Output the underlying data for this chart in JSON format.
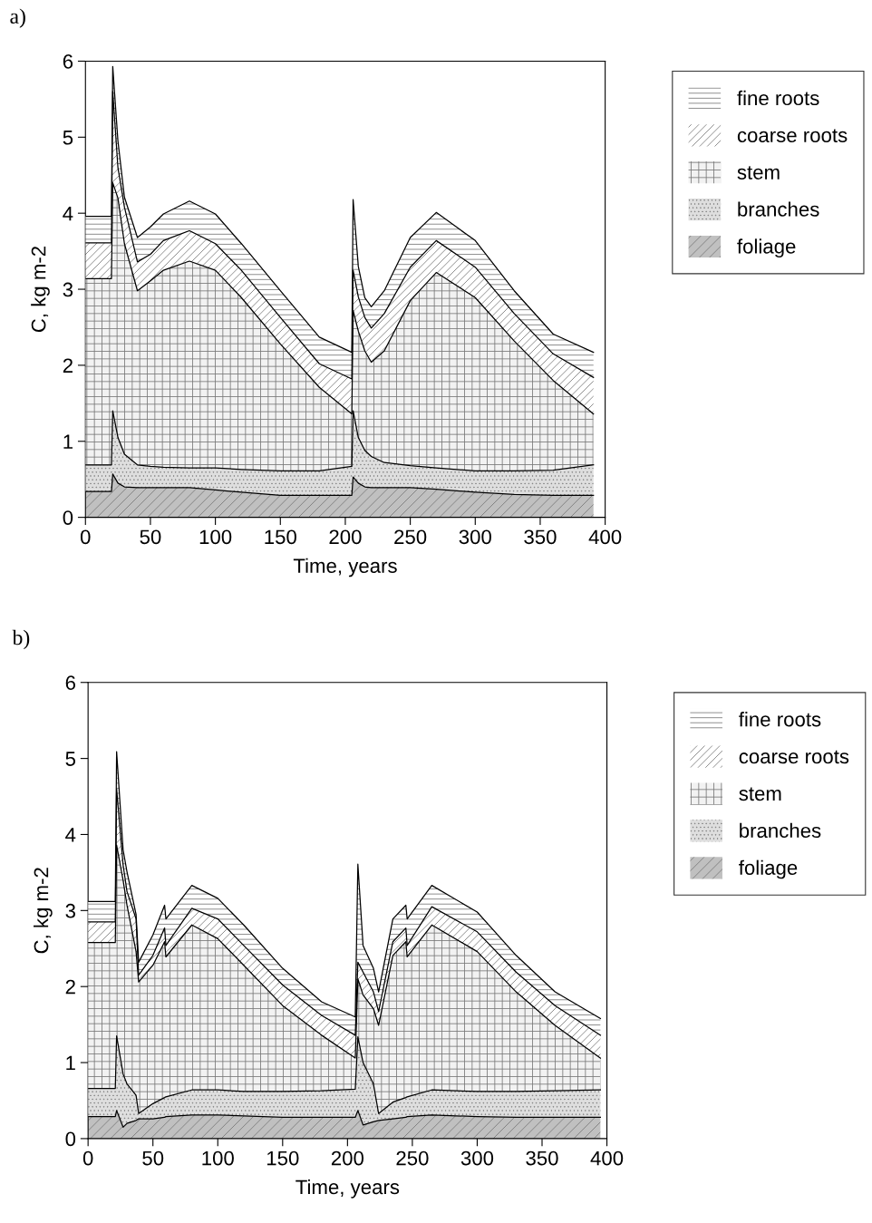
{
  "chart_data": [
    {
      "type": "area",
      "stacked": true,
      "title": "a)",
      "xlabel": "Time, years",
      "ylabel": "C, kg m-2",
      "legend": "right",
      "grid": false,
      "xlim": [
        0,
        400
      ],
      "xticks": [
        0,
        50,
        100,
        150,
        200,
        250,
        300,
        350,
        400
      ],
      "ylim": [
        0,
        6
      ],
      "yticks": [
        0,
        1,
        2,
        3,
        4,
        5,
        6
      ],
      "x": [
        0,
        20,
        21,
        25,
        30,
        40,
        50,
        60,
        80,
        100,
        120,
        150,
        180,
        205,
        206,
        210,
        215,
        220,
        230,
        250,
        270,
        300,
        330,
        360,
        391
      ],
      "series": [
        {
          "name": "foliage",
          "color": "#c0c0c0",
          "values": [
            0.34,
            0.34,
            0.57,
            0.45,
            0.4,
            0.39,
            0.39,
            0.39,
            0.39,
            0.36,
            0.33,
            0.29,
            0.29,
            0.29,
            0.53,
            0.45,
            0.4,
            0.39,
            0.39,
            0.39,
            0.37,
            0.33,
            0.3,
            0.29,
            0.29
          ]
        },
        {
          "name": "branches",
          "color": "#dedede",
          "values": [
            0.35,
            0.35,
            0.83,
            0.6,
            0.43,
            0.3,
            0.28,
            0.27,
            0.26,
            0.29,
            0.3,
            0.32,
            0.32,
            0.38,
            0.87,
            0.6,
            0.48,
            0.41,
            0.33,
            0.29,
            0.28,
            0.28,
            0.31,
            0.33,
            0.4
          ]
        },
        {
          "name": "stem",
          "color": "#f2f2f2",
          "values": [
            2.45,
            2.45,
            3.0,
            3.15,
            2.77,
            2.29,
            2.44,
            2.59,
            2.72,
            2.6,
            2.26,
            1.67,
            1.1,
            0.69,
            1.32,
            1.4,
            1.31,
            1.24,
            1.47,
            2.17,
            2.57,
            2.28,
            1.71,
            1.18,
            0.67
          ]
        },
        {
          "name": "coarse roots",
          "color": "#ffffff",
          "values": [
            0.47,
            0.47,
            1.2,
            0.4,
            0.48,
            0.38,
            0.35,
            0.39,
            0.4,
            0.35,
            0.36,
            0.35,
            0.31,
            0.46,
            0.53,
            0.45,
            0.44,
            0.45,
            0.49,
            0.44,
            0.42,
            0.4,
            0.36,
            0.35,
            0.48
          ]
        },
        {
          "name": "fine roots",
          "color": "#ffffff",
          "values": [
            0.35,
            0.35,
            0.33,
            0.35,
            0.13,
            0.32,
            0.36,
            0.35,
            0.39,
            0.39,
            0.35,
            0.35,
            0.35,
            0.35,
            0.93,
            0.4,
            0.26,
            0.28,
            0.3,
            0.39,
            0.37,
            0.35,
            0.3,
            0.26,
            0.33
          ]
        }
      ]
    },
    {
      "type": "area",
      "stacked": true,
      "title": "b)",
      "xlabel": "Time, years",
      "ylabel": "C, kg m-2",
      "legend": "right",
      "grid": false,
      "xlim": [
        0,
        400
      ],
      "xticks": [
        0,
        50,
        100,
        150,
        200,
        250,
        300,
        350,
        400
      ],
      "ylim": [
        0,
        6
      ],
      "yticks": [
        0,
        1,
        2,
        3,
        4,
        5,
        6
      ],
      "x": [
        0,
        21,
        22,
        27,
        30,
        37,
        39,
        50,
        59,
        60,
        80,
        100,
        120,
        150,
        180,
        206,
        208,
        212,
        220,
        224,
        235,
        245,
        246,
        265,
        300,
        330,
        360,
        395
      ],
      "series": [
        {
          "name": "foliage",
          "color": "#c0c0c0",
          "values": [
            0.29,
            0.29,
            0.37,
            0.15,
            0.2,
            0.24,
            0.26,
            0.26,
            0.28,
            0.29,
            0.31,
            0.31,
            0.3,
            0.28,
            0.28,
            0.28,
            0.37,
            0.18,
            0.22,
            0.24,
            0.26,
            0.28,
            0.29,
            0.31,
            0.29,
            0.28,
            0.28,
            0.28
          ]
        },
        {
          "name": "branches",
          "color": "#dedede",
          "values": [
            0.37,
            0.37,
            0.98,
            0.7,
            0.52,
            0.33,
            0.07,
            0.2,
            0.26,
            0.26,
            0.33,
            0.33,
            0.32,
            0.34,
            0.35,
            0.37,
            0.97,
            0.82,
            0.5,
            0.09,
            0.22,
            0.26,
            0.26,
            0.33,
            0.33,
            0.34,
            0.35,
            0.36
          ]
        },
        {
          "name": "stem",
          "color": "#f2f2f2",
          "values": [
            1.92,
            1.92,
            2.51,
            2.55,
            2.35,
            1.89,
            1.73,
            1.82,
            2.05,
            1.84,
            2.17,
            1.99,
            1.66,
            1.13,
            0.73,
            0.41,
            0.76,
            0.89,
            0.99,
            1.16,
            1.93,
            2.05,
            1.84,
            2.17,
            1.84,
            1.31,
            0.86,
            0.42
          ]
        },
        {
          "name": "coarse roots",
          "color": "#ffffff",
          "values": [
            0.27,
            0.27,
            0.74,
            0.2,
            0.18,
            0.43,
            0.09,
            0.13,
            0.18,
            0.15,
            0.22,
            0.26,
            0.26,
            0.27,
            0.26,
            0.3,
            0.22,
            0.3,
            0.22,
            0.18,
            0.18,
            0.18,
            0.15,
            0.24,
            0.26,
            0.26,
            0.26,
            0.3
          ]
        },
        {
          "name": "fine roots",
          "color": "#ffffff",
          "values": [
            0.27,
            0.27,
            0.49,
            0.2,
            0.26,
            0.06,
            0.17,
            0.27,
            0.3,
            0.35,
            0.3,
            0.27,
            0.27,
            0.22,
            0.18,
            0.24,
            1.29,
            0.35,
            0.31,
            0.26,
            0.3,
            0.3,
            0.35,
            0.28,
            0.26,
            0.22,
            0.18,
            0.22
          ]
        }
      ]
    }
  ]
}
